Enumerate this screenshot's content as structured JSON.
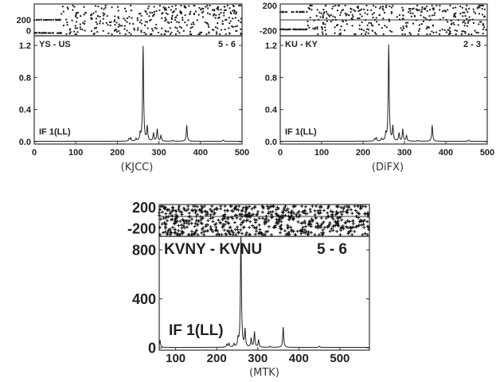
{
  "chart_data": [
    {
      "type": "line",
      "baseline": "YS - US",
      "channel": "5 - 6",
      "if_label": "IF 1(LL)",
      "xlabel": "(KJCC)",
      "xlim": [
        0,
        500
      ],
      "xticks": [
        "0",
        "100",
        "200",
        "300",
        "400",
        "500"
      ],
      "ylim": [
        0,
        1.2
      ],
      "yticks": [
        "0.0",
        "0.4",
        "0.8",
        "1.2"
      ],
      "phase_ylim": [
        -20,
        420
      ],
      "phase_ticks": [
        "200",
        "0"
      ],
      "phase_ref_lines": [],
      "phase_flat_levels": [
        200,
        20
      ],
      "peaks": [
        {
          "x": 228,
          "y": 0.03
        },
        {
          "x": 232,
          "y": 0.04
        },
        {
          "x": 245,
          "y": 0.03
        },
        {
          "x": 255,
          "y": 0.08
        },
        {
          "x": 262,
          "y": 1.18
        },
        {
          "x": 272,
          "y": 0.18
        },
        {
          "x": 287,
          "y": 0.1
        },
        {
          "x": 296,
          "y": 0.15
        },
        {
          "x": 305,
          "y": 0.07
        },
        {
          "x": 333,
          "y": 0.01
        },
        {
          "x": 367,
          "y": 0.2
        },
        {
          "x": 455,
          "y": 0.015
        }
      ]
    },
    {
      "type": "line",
      "baseline": "KU - KY",
      "channel": "2 - 3",
      "if_label": "IF 1(LL)",
      "xlabel": "(DiFX)",
      "xlim": [
        0,
        500
      ],
      "xticks": [
        "0",
        "100",
        "200",
        "300",
        "400",
        "500"
      ],
      "ylim": [
        0,
        1.2
      ],
      "yticks": [
        "0.0",
        "0.4",
        "0.8",
        "1.2"
      ],
      "phase_ylim": [
        -200,
        200
      ],
      "phase_ticks": [
        "200",
        "-200"
      ],
      "phase_ref_lines": [
        0
      ],
      "phase_flat_levels": [
        100,
        -120
      ],
      "peaks": [
        {
          "x": 228,
          "y": 0.03
        },
        {
          "x": 232,
          "y": 0.04
        },
        {
          "x": 245,
          "y": 0.03
        },
        {
          "x": 255,
          "y": 0.08
        },
        {
          "x": 262,
          "y": 1.2
        },
        {
          "x": 272,
          "y": 0.18
        },
        {
          "x": 287,
          "y": 0.1
        },
        {
          "x": 296,
          "y": 0.15
        },
        {
          "x": 305,
          "y": 0.07
        },
        {
          "x": 333,
          "y": 0.01
        },
        {
          "x": 367,
          "y": 0.2
        },
        {
          "x": 455,
          "y": 0.015
        }
      ]
    },
    {
      "type": "line",
      "baseline": "KVNY - KVNU",
      "channel": "5 - 6",
      "if_label": "IF 1(LL)",
      "xlabel": "(MTK)",
      "xlim": [
        60,
        572
      ],
      "xticks": [
        "100",
        "200",
        "300",
        "400",
        "500"
      ],
      "ylim": [
        0,
        800
      ],
      "yticks": [
        "0",
        "400",
        "800"
      ],
      "phase_ylim": [
        -200,
        200
      ],
      "phase_ticks": [
        "200",
        "-200"
      ],
      "phase_ref_lines": [
        50
      ],
      "phase_flat_levels": [],
      "peaks": [
        {
          "x": 62,
          "y": 60
        },
        {
          "x": 225,
          "y": 25
        },
        {
          "x": 230,
          "y": 30
        },
        {
          "x": 242,
          "y": 25
        },
        {
          "x": 252,
          "y": 60
        },
        {
          "x": 259,
          "y": 950
        },
        {
          "x": 269,
          "y": 140
        },
        {
          "x": 284,
          "y": 70
        },
        {
          "x": 292,
          "y": 125
        },
        {
          "x": 302,
          "y": 60
        },
        {
          "x": 330,
          "y": 8
        },
        {
          "x": 362,
          "y": 165
        },
        {
          "x": 450,
          "y": 10
        }
      ]
    }
  ]
}
